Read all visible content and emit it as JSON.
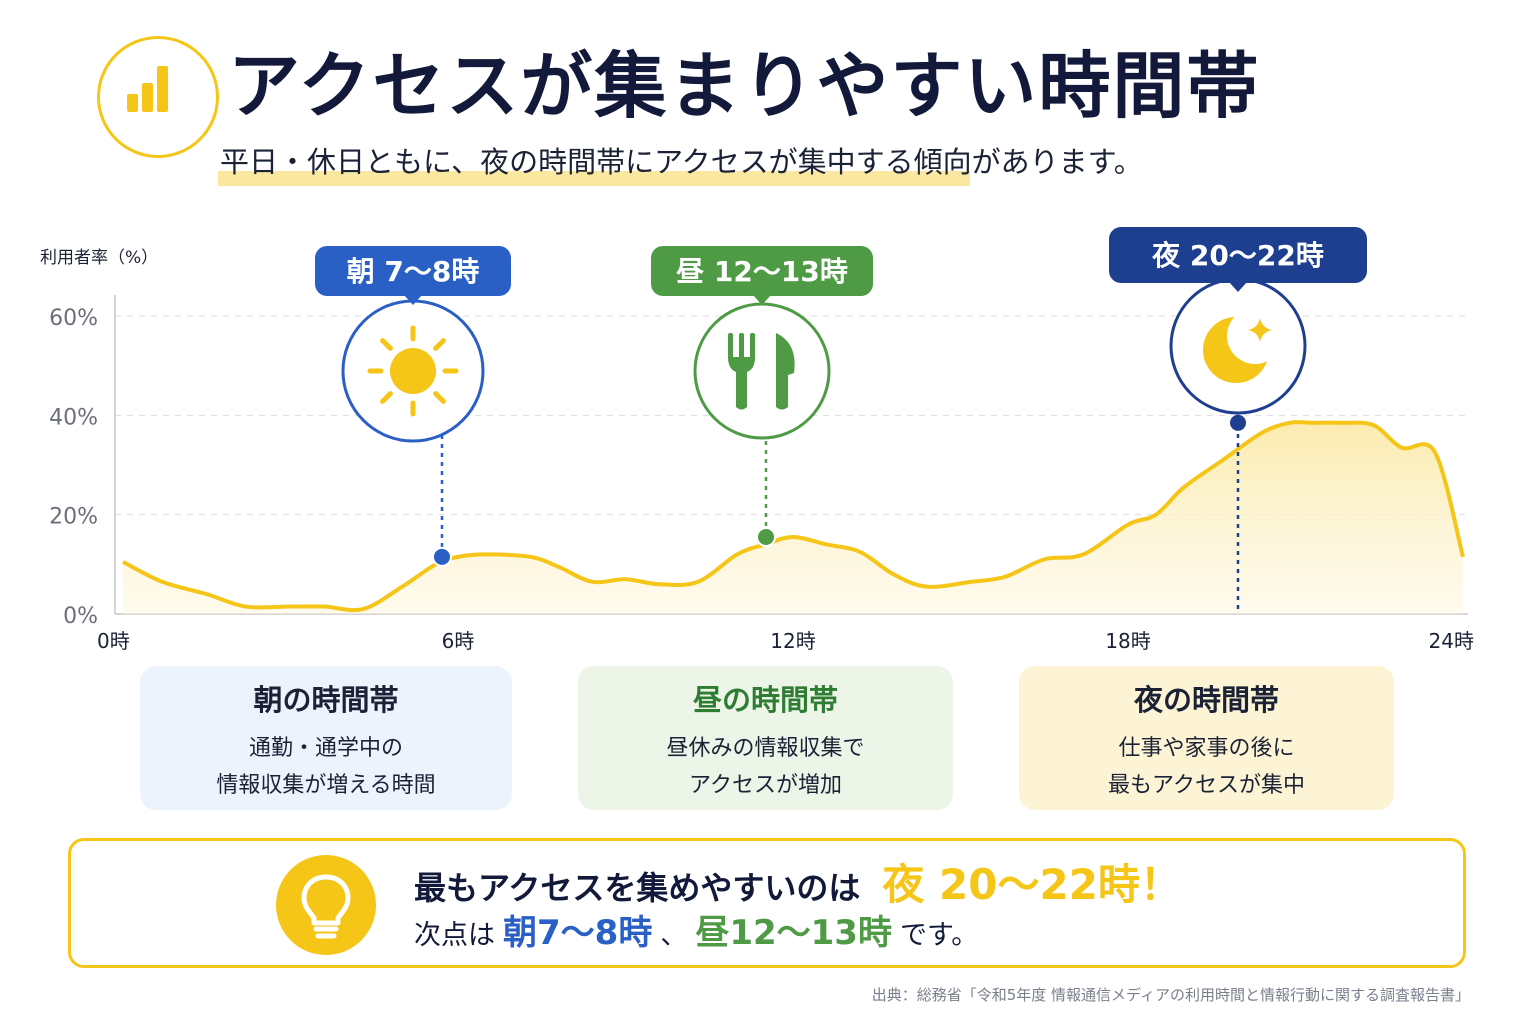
{
  "header": {
    "title": "アクセスが集まりやすい時間帯",
    "subtitle": "平日・休日ともに、夜の時間帯にアクセスが集中する傾向があります。",
    "icon": "bar-chart-icon"
  },
  "chart_data": {
    "type": "area",
    "ylabel": "利用者率（%）",
    "ylim": [
      0,
      65
    ],
    "yticks": [
      0,
      20,
      40,
      60
    ],
    "ytick_labels": [
      "0%",
      "20%",
      "40%",
      "60%"
    ],
    "xlim": [
      0,
      24
    ],
    "xticks": [
      0,
      6,
      12,
      18,
      24
    ],
    "xtick_labels": [
      "0時",
      "6時",
      "12時",
      "18時",
      "24時"
    ],
    "grid": true,
    "series": [
      {
        "color": "#f5c518",
        "x": [
          0,
          0.7,
          1.5,
          2.2,
          3,
          3.6,
          4.3,
          5,
          5.6,
          6,
          6.5,
          7.3,
          7.8,
          8.4,
          9,
          9.6,
          10.3,
          11,
          11.5,
          12,
          12.6,
          13.2,
          13.8,
          14.4,
          15.2,
          15.8,
          16.5,
          17.2,
          18,
          18.5,
          19,
          19.7,
          20.4,
          20.9,
          21.3,
          21.8,
          22.4,
          22.9,
          23.5,
          24
        ],
        "y": [
          10.5,
          6.5,
          4,
          1.5,
          1.5,
          1.5,
          1,
          5.5,
          10,
          11.5,
          12,
          11.5,
          9.5,
          6.5,
          7,
          6,
          6.5,
          12,
          14,
          15.5,
          14,
          12.5,
          8,
          5.5,
          6.5,
          7.5,
          11,
          12,
          18,
          20,
          25.5,
          31,
          36.5,
          38.5,
          38.5,
          38.5,
          38,
          33.5,
          32.5,
          11.5
        ]
      }
    ],
    "annotations": [
      {
        "label": "朝 7〜8時",
        "x": 6,
        "y": 11.5,
        "color": "#2a5fc5",
        "icon": "sun-icon"
      },
      {
        "label": "昼 12〜13時",
        "x": 12,
        "y": 15.5,
        "color": "#4e9a45",
        "icon": "fork-knife-icon"
      },
      {
        "label": "夜 20〜22時",
        "x": 20.9,
        "y": 38.5,
        "color": "#1e3f8f",
        "icon": "moon-star-icon"
      }
    ]
  },
  "cards": [
    {
      "title": "朝の時間帯",
      "line1": "通勤・通学中の",
      "line2": "情報収集が増える時間",
      "title_color": "#1c2236"
    },
    {
      "title": "昼の時間帯",
      "line1": "昼休みの情報収集で",
      "line2": "アクセスが増加",
      "title_color": "#2e7d32"
    },
    {
      "title": "夜の時間帯",
      "line1": "仕事や家事の後に",
      "line2": "最もアクセスが集中",
      "title_color": "#1c2236"
    }
  ],
  "summary": {
    "lead": "最もアクセスを集めやすいのは",
    "peak": "夜 20〜22時！",
    "next_prefix": "次点は",
    "next1": "朝7〜8時",
    "sep": "、",
    "next2": "昼12〜13時",
    "suffix": "です。",
    "icon": "lightbulb-icon"
  },
  "source": "出典：総務省「令和5年度 情報通信メディアの利用時間と情報行動に関する調査報告書」",
  "colors": {
    "accent": "#f5c518",
    "morning": "#2a5fc5",
    "noon": "#4e9a45",
    "night": "#1e3f8f",
    "title": "#13193a"
  }
}
